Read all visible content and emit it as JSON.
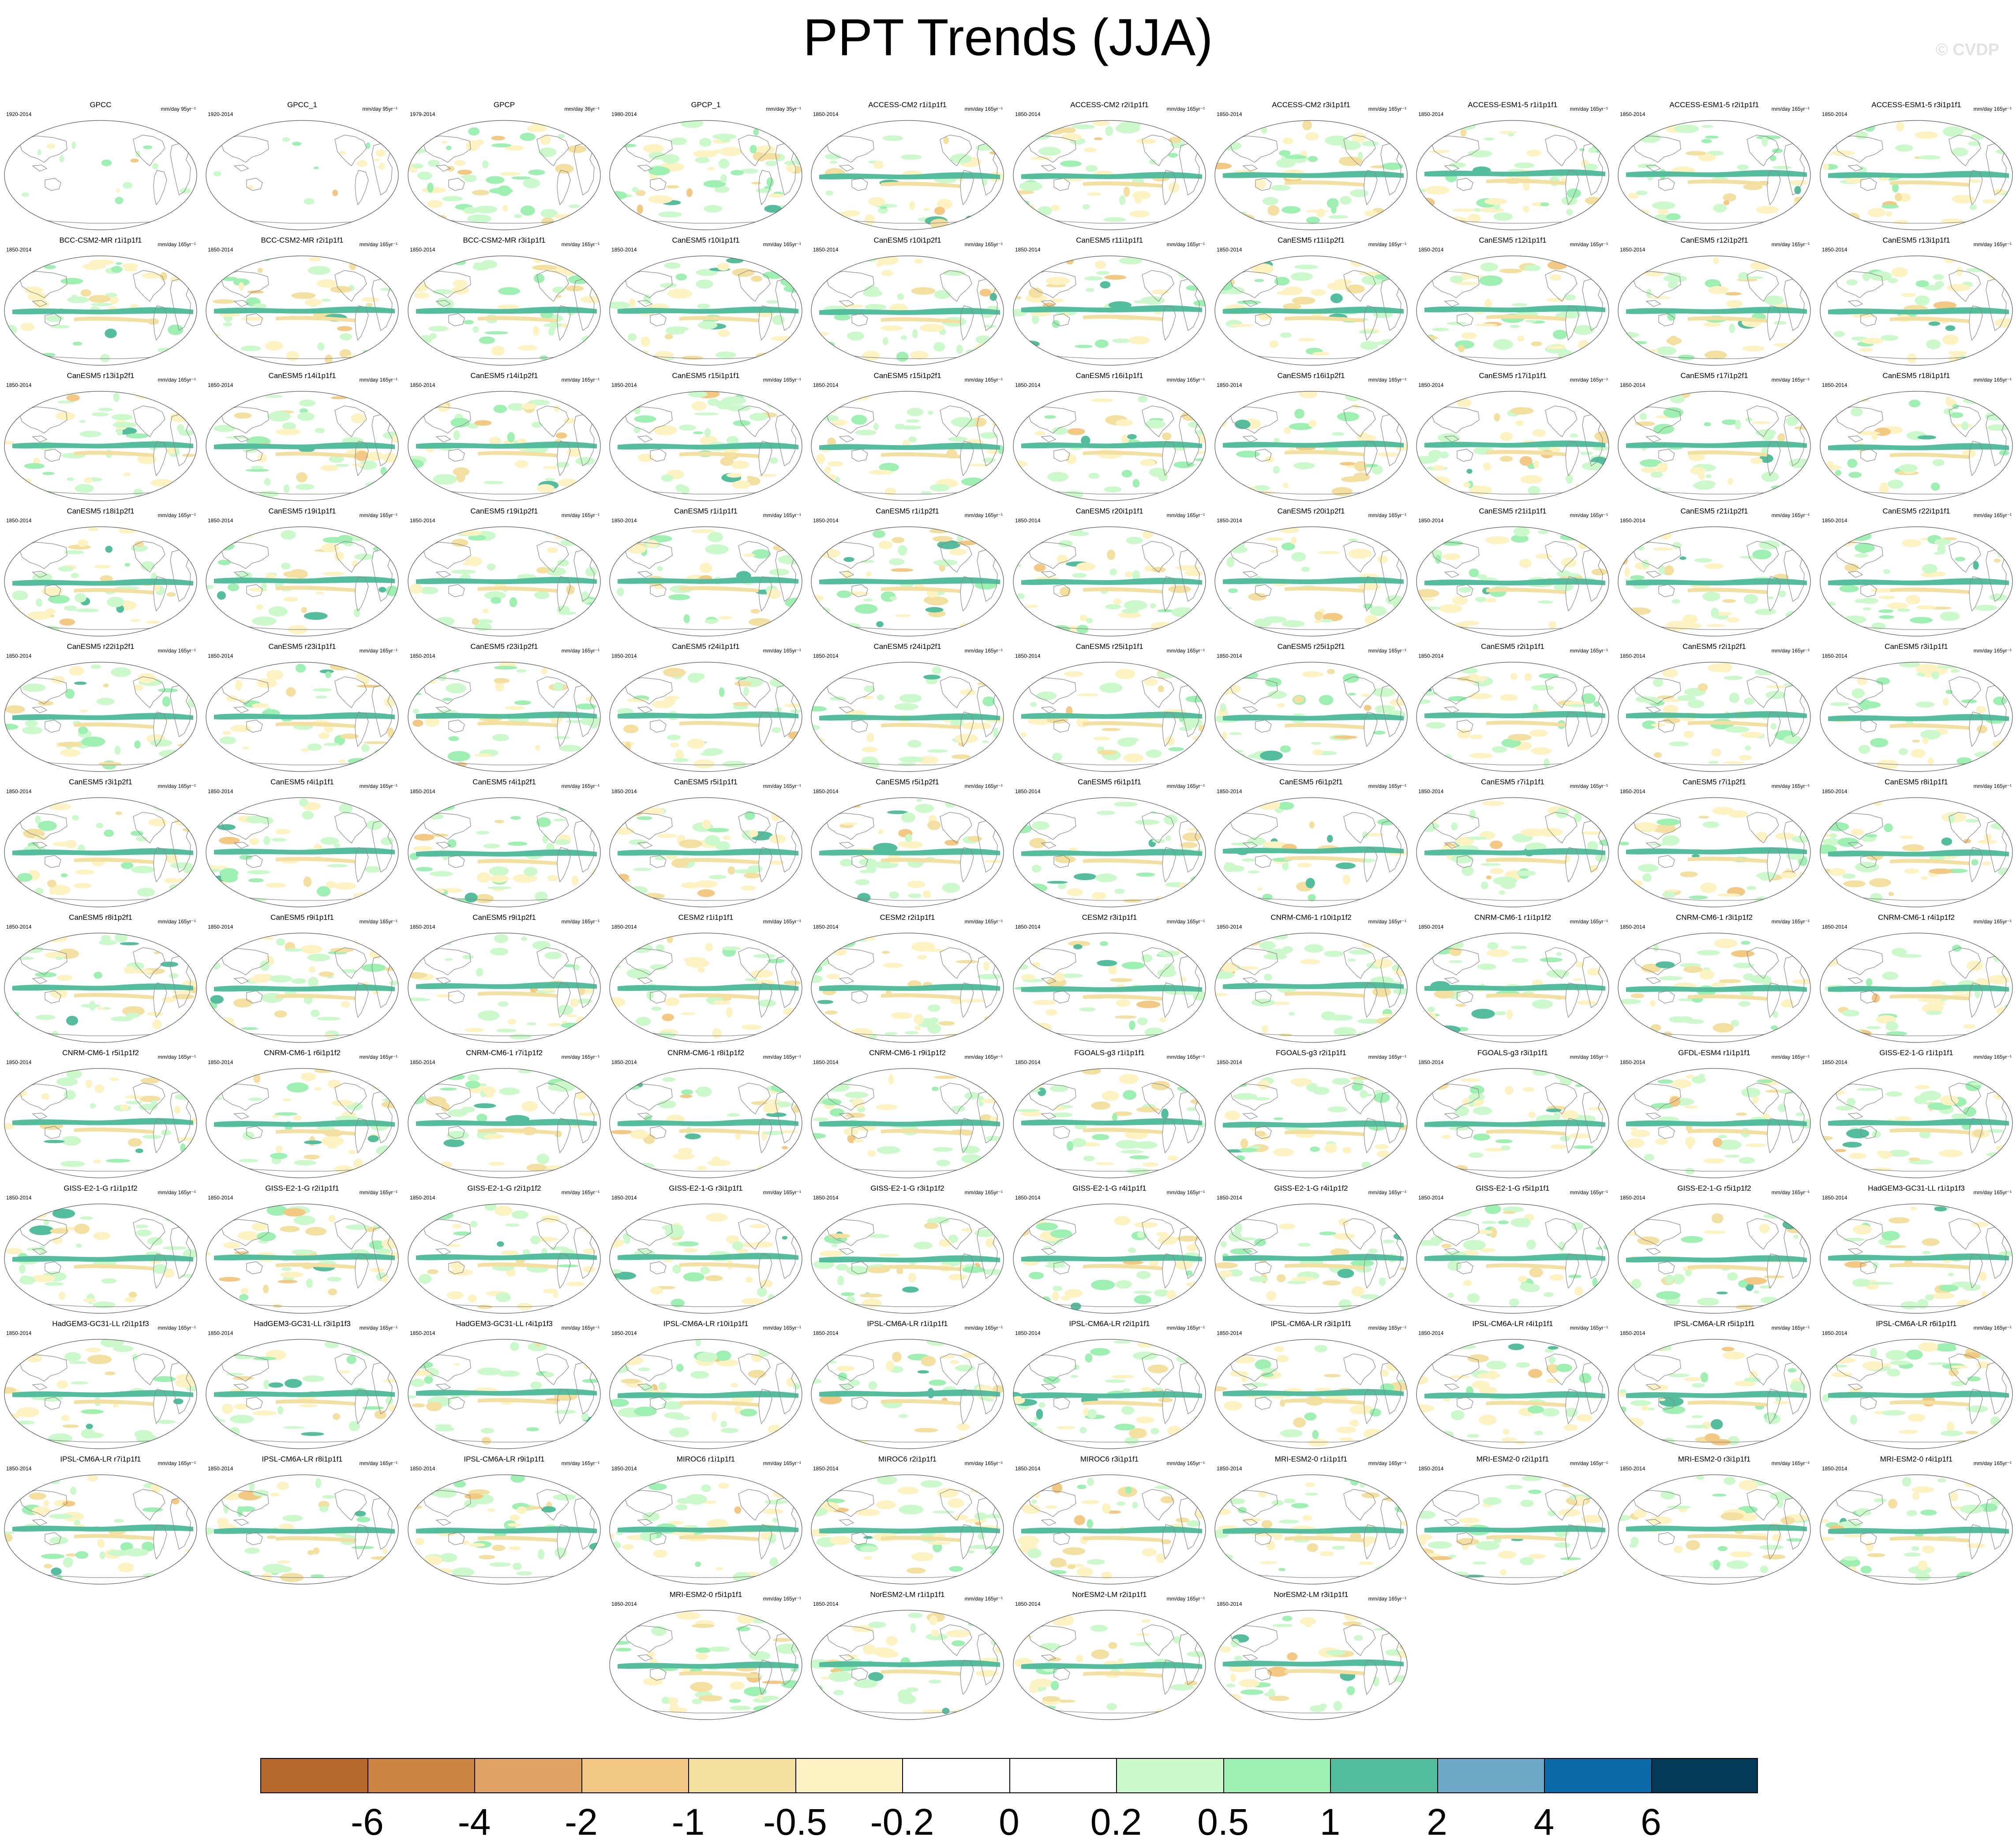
{
  "title": "PPT Trends (JJA)",
  "credit": "© CVDP",
  "colors": {
    "land_outline": "#8a8a8a",
    "map_border": "#555555",
    "palette": [
      "#b5692a",
      "#cc8442",
      "#dea262",
      "#f3c883",
      "#f5dfa2",
      "#fcf1c2",
      "#ffffff",
      "#ffffff",
      "#ccf8cc",
      "#9ded b1",
      "#57be9b",
      "#73a9c8",
      "#0a6aa8",
      "#003857"
    ]
  },
  "colorbar": {
    "colors": [
      "#b5692a",
      "#cc8442",
      "#dea262",
      "#f3c883",
      "#f3e0a0",
      "#fdf2c2",
      "#ffffff",
      "#ffffff",
      "#ccf9cc",
      "#9ef0b2",
      "#53bd9e",
      "#6fa9c8",
      "#0b6aa8",
      "#033a57"
    ],
    "labels": [
      "-6",
      "-4",
      "-2",
      "-1",
      "-0.5",
      "-0.2",
      "0",
      "0.2",
      "0.5",
      "1",
      "2",
      "4",
      "6"
    ]
  },
  "panels": [
    {
      "title": "GPCC",
      "period": "1920-2014",
      "units": "mm/day 95yr⁻¹",
      "style": "obs"
    },
    {
      "title": "GPCC_1",
      "period": "1920-2014",
      "units": "mm/day 95yr⁻¹",
      "style": "obs"
    },
    {
      "title": "GPCP",
      "period": "1979-2014",
      "units": "mm/day 36yr⁻¹",
      "style": "gpcp"
    },
    {
      "title": "GPCP_1",
      "period": "1980-2014",
      "units": "mm/day 35yr⁻¹",
      "style": "gpcp"
    },
    {
      "title": "ACCESS-CM2 r1i1p1f1",
      "period": "1850-2014",
      "units": "mm/day 165yr⁻¹",
      "style": "model"
    },
    {
      "title": "ACCESS-CM2 r2i1p1f1",
      "period": "1850-2014",
      "units": "mm/day 165yr⁻¹",
      "style": "model"
    },
    {
      "title": "ACCESS-CM2 r3i1p1f1",
      "period": "1850-2014",
      "units": "mm/day 165yr⁻¹",
      "style": "model"
    },
    {
      "title": "ACCESS-ESM1-5 r1i1p1f1",
      "period": "1850-2014",
      "units": "mm/day 165yr⁻¹",
      "style": "model"
    },
    {
      "title": "ACCESS-ESM1-5 r2i1p1f1",
      "period": "1850-2014",
      "units": "mm/day 165yr⁻¹",
      "style": "model"
    },
    {
      "title": "ACCESS-ESM1-5 r3i1p1f1",
      "period": "1850-2014",
      "units": "mm/day 165yr⁻¹",
      "style": "model"
    },
    {
      "title": "BCC-CSM2-MR r1i1p1f1",
      "period": "1850-2014",
      "units": "mm/day 165yr⁻¹",
      "style": "model"
    },
    {
      "title": "BCC-CSM2-MR r2i1p1f1",
      "period": "1850-2014",
      "units": "mm/day 165yr⁻¹",
      "style": "model"
    },
    {
      "title": "BCC-CSM2-MR r3i1p1f1",
      "period": "1850-2014",
      "units": "mm/day 165yr⁻¹",
      "style": "model"
    },
    {
      "title": "CanESM5 r10i1p1f1",
      "period": "1850-2014",
      "units": "mm/day 165yr⁻¹",
      "style": "model"
    },
    {
      "title": "CanESM5 r10i1p2f1",
      "period": "1850-2014",
      "units": "mm/day 165yr⁻¹",
      "style": "model"
    },
    {
      "title": "CanESM5 r11i1p1f1",
      "period": "1850-2014",
      "units": "mm/day 165yr⁻¹",
      "style": "model"
    },
    {
      "title": "CanESM5 r11i1p2f1",
      "period": "1850-2014",
      "units": "mm/day 165yr⁻¹",
      "style": "model"
    },
    {
      "title": "CanESM5 r12i1p1f1",
      "period": "1850-2014",
      "units": "mm/day 165yr⁻¹",
      "style": "model"
    },
    {
      "title": "CanESM5 r12i1p2f1",
      "period": "1850-2014",
      "units": "mm/day 165yr⁻¹",
      "style": "model"
    },
    {
      "title": "CanESM5 r13i1p1f1",
      "period": "1850-2014",
      "units": "mm/day 165yr⁻¹",
      "style": "model"
    },
    {
      "title": "CanESM5 r13i1p2f1",
      "period": "1850-2014",
      "units": "mm/day 165yr⁻¹",
      "style": "model"
    },
    {
      "title": "CanESM5 r14i1p1f1",
      "period": "1850-2014",
      "units": "mm/day 165yr⁻¹",
      "style": "model"
    },
    {
      "title": "CanESM5 r14i1p2f1",
      "period": "1850-2014",
      "units": "mm/day 165yr⁻¹",
      "style": "model"
    },
    {
      "title": "CanESM5 r15i1p1f1",
      "period": "1850-2014",
      "units": "mm/day 165yr⁻¹",
      "style": "model"
    },
    {
      "title": "CanESM5 r15i1p2f1",
      "period": "1850-2014",
      "units": "mm/day 165yr⁻¹",
      "style": "model"
    },
    {
      "title": "CanESM5 r16i1p1f1",
      "period": "1850-2014",
      "units": "mm/day 165yr⁻¹",
      "style": "model"
    },
    {
      "title": "CanESM5 r16i1p2f1",
      "period": "1850-2014",
      "units": "mm/day 165yr⁻¹",
      "style": "model"
    },
    {
      "title": "CanESM5 r17i1p1f1",
      "period": "1850-2014",
      "units": "mm/day 165yr⁻¹",
      "style": "model"
    },
    {
      "title": "CanESM5 r17i1p2f1",
      "period": "1850-2014",
      "units": "mm/day 165yr⁻¹",
      "style": "model"
    },
    {
      "title": "CanESM5 r18i1p1f1",
      "period": "1850-2014",
      "units": "mm/day 165yr⁻¹",
      "style": "model"
    },
    {
      "title": "CanESM5 r18i1p2f1",
      "period": "1850-2014",
      "units": "mm/day 165yr⁻¹",
      "style": "model"
    },
    {
      "title": "CanESM5 r19i1p1f1",
      "period": "1850-2014",
      "units": "mm/day 165yr⁻¹",
      "style": "model"
    },
    {
      "title": "CanESM5 r19i1p2f1",
      "period": "1850-2014",
      "units": "mm/day 165yr⁻¹",
      "style": "model"
    },
    {
      "title": "CanESM5 r1i1p1f1",
      "period": "1850-2014",
      "units": "mm/day 165yr⁻¹",
      "style": "model"
    },
    {
      "title": "CanESM5 r1i1p2f1",
      "period": "1850-2014",
      "units": "mm/day 165yr⁻¹",
      "style": "model"
    },
    {
      "title": "CanESM5 r20i1p1f1",
      "period": "1850-2014",
      "units": "mm/day 165yr⁻¹",
      "style": "model"
    },
    {
      "title": "CanESM5 r20i1p2f1",
      "period": "1850-2014",
      "units": "mm/day 165yr⁻¹",
      "style": "model"
    },
    {
      "title": "CanESM5 r21i1p1f1",
      "period": "1850-2014",
      "units": "mm/day 165yr⁻¹",
      "style": "model"
    },
    {
      "title": "CanESM5 r21i1p2f1",
      "period": "1850-2014",
      "units": "mm/day 165yr⁻¹",
      "style": "model"
    },
    {
      "title": "CanESM5 r22i1p1f1",
      "period": "1850-2014",
      "units": "mm/day 165yr⁻¹",
      "style": "model"
    },
    {
      "title": "CanESM5 r22i1p2f1",
      "period": "1850-2014",
      "units": "mm/day 165yr⁻¹",
      "style": "model"
    },
    {
      "title": "CanESM5 r23i1p1f1",
      "period": "1850-2014",
      "units": "mm/day 165yr⁻¹",
      "style": "model"
    },
    {
      "title": "CanESM5 r23i1p2f1",
      "period": "1850-2014",
      "units": "mm/day 165yr⁻¹",
      "style": "model"
    },
    {
      "title": "CanESM5 r24i1p1f1",
      "period": "1850-2014",
      "units": "mm/day 165yr⁻¹",
      "style": "model"
    },
    {
      "title": "CanESM5 r24i1p2f1",
      "period": "1850-2014",
      "units": "mm/day 165yr⁻¹",
      "style": "model"
    },
    {
      "title": "CanESM5 r25i1p1f1",
      "period": "1850-2014",
      "units": "mm/day 165yr⁻¹",
      "style": "model"
    },
    {
      "title": "CanESM5 r25i1p2f1",
      "period": "1850-2014",
      "units": "mm/day 165yr⁻¹",
      "style": "model"
    },
    {
      "title": "CanESM5 r2i1p1f1",
      "period": "1850-2014",
      "units": "mm/day 165yr⁻¹",
      "style": "model"
    },
    {
      "title": "CanESM5 r2i1p2f1",
      "period": "1850-2014",
      "units": "mm/day 165yr⁻¹",
      "style": "model"
    },
    {
      "title": "CanESM5 r3i1p1f1",
      "period": "1850-2014",
      "units": "mm/day 165yr⁻¹",
      "style": "model"
    },
    {
      "title": "CanESM5 r3i1p2f1",
      "period": "1850-2014",
      "units": "mm/day 165yr⁻¹",
      "style": "model"
    },
    {
      "title": "CanESM5 r4i1p1f1",
      "period": "1850-2014",
      "units": "mm/day 165yr⁻¹",
      "style": "model"
    },
    {
      "title": "CanESM5 r4i1p2f1",
      "period": "1850-2014",
      "units": "mm/day 165yr⁻¹",
      "style": "model"
    },
    {
      "title": "CanESM5 r5i1p1f1",
      "period": "1850-2014",
      "units": "mm/day 165yr⁻¹",
      "style": "model"
    },
    {
      "title": "CanESM5 r5i1p2f1",
      "period": "1850-2014",
      "units": "mm/day 165yr⁻¹",
      "style": "model"
    },
    {
      "title": "CanESM5 r6i1p1f1",
      "period": "1850-2014",
      "units": "mm/day 165yr⁻¹",
      "style": "model"
    },
    {
      "title": "CanESM5 r6i1p2f1",
      "period": "1850-2014",
      "units": "mm/day 165yr⁻¹",
      "style": "model"
    },
    {
      "title": "CanESM5 r7i1p1f1",
      "period": "1850-2014",
      "units": "mm/day 165yr⁻¹",
      "style": "model"
    },
    {
      "title": "CanESM5 r7i1p2f1",
      "period": "1850-2014",
      "units": "mm/day 165yr⁻¹",
      "style": "model"
    },
    {
      "title": "CanESM5 r8i1p1f1",
      "period": "1850-2014",
      "units": "mm/day 165yr⁻¹",
      "style": "model"
    },
    {
      "title": "CanESM5 r8i1p2f1",
      "period": "1850-2014",
      "units": "mm/day 165yr⁻¹",
      "style": "model"
    },
    {
      "title": "CanESM5 r9i1p1f1",
      "period": "1850-2014",
      "units": "mm/day 165yr⁻¹",
      "style": "model"
    },
    {
      "title": "CanESM5 r9i1p2f1",
      "period": "1850-2014",
      "units": "mm/day 165yr⁻¹",
      "style": "model"
    },
    {
      "title": "CESM2 r1i1p1f1",
      "period": "1850-2014",
      "units": "mm/day 165yr⁻¹",
      "style": "model"
    },
    {
      "title": "CESM2 r2i1p1f1",
      "period": "1850-2014",
      "units": "mm/day 165yr⁻¹",
      "style": "model"
    },
    {
      "title": "CESM2 r3i1p1f1",
      "period": "1850-2014",
      "units": "mm/day 165yr⁻¹",
      "style": "model"
    },
    {
      "title": "CNRM-CM6-1 r10i1p1f2",
      "period": "1850-2014",
      "units": "mm/day 165yr⁻¹",
      "style": "model"
    },
    {
      "title": "CNRM-CM6-1 r1i1p1f2",
      "period": "1850-2014",
      "units": "mm/day 165yr⁻¹",
      "style": "model"
    },
    {
      "title": "CNRM-CM6-1 r3i1p1f2",
      "period": "1850-2014",
      "units": "mm/day 165yr⁻¹",
      "style": "model"
    },
    {
      "title": "CNRM-CM6-1 r4i1p1f2",
      "period": "1850-2014",
      "units": "mm/day 165yr⁻¹",
      "style": "model"
    },
    {
      "title": "CNRM-CM6-1 r5i1p1f2",
      "period": "1850-2014",
      "units": "mm/day 165yr⁻¹",
      "style": "model"
    },
    {
      "title": "CNRM-CM6-1 r6i1p1f2",
      "period": "1850-2014",
      "units": "mm/day 165yr⁻¹",
      "style": "model"
    },
    {
      "title": "CNRM-CM6-1 r7i1p1f2",
      "period": "1850-2014",
      "units": "mm/day 165yr⁻¹",
      "style": "model"
    },
    {
      "title": "CNRM-CM6-1 r8i1p1f2",
      "period": "1850-2014",
      "units": "mm/day 165yr⁻¹",
      "style": "model"
    },
    {
      "title": "CNRM-CM6-1 r9i1p1f2",
      "period": "1850-2014",
      "units": "mm/day 165yr⁻¹",
      "style": "model"
    },
    {
      "title": "FGOALS-g3 r1i1p1f1",
      "period": "1850-2014",
      "units": "mm/day 165yr⁻¹",
      "style": "model"
    },
    {
      "title": "FGOALS-g3 r2i1p1f1",
      "period": "1850-2014",
      "units": "mm/day 165yr⁻¹",
      "style": "model"
    },
    {
      "title": "FGOALS-g3 r3i1p1f1",
      "period": "1850-2014",
      "units": "mm/day 165yr⁻¹",
      "style": "model"
    },
    {
      "title": "GFDL-ESM4 r1i1p1f1",
      "period": "1850-2014",
      "units": "mm/day 165yr⁻¹",
      "style": "model"
    },
    {
      "title": "GISS-E2-1-G r1i1p1f1",
      "period": "1850-2014",
      "units": "mm/day 165yr⁻¹",
      "style": "model"
    },
    {
      "title": "GISS-E2-1-G r1i1p1f2",
      "period": "1850-2014",
      "units": "mm/day 165yr⁻¹",
      "style": "model"
    },
    {
      "title": "GISS-E2-1-G r2i1p1f1",
      "period": "1850-2014",
      "units": "mm/day 165yr⁻¹",
      "style": "model"
    },
    {
      "title": "GISS-E2-1-G r2i1p1f2",
      "period": "1850-2014",
      "units": "mm/day 165yr⁻¹",
      "style": "model"
    },
    {
      "title": "GISS-E2-1-G r3i1p1f1",
      "period": "1850-2014",
      "units": "mm/day 165yr⁻¹",
      "style": "model"
    },
    {
      "title": "GISS-E2-1-G r3i1p1f2",
      "period": "1850-2014",
      "units": "mm/day 165yr⁻¹",
      "style": "model"
    },
    {
      "title": "GISS-E2-1-G r4i1p1f1",
      "period": "1850-2014",
      "units": "mm/day 165yr⁻¹",
      "style": "model"
    },
    {
      "title": "GISS-E2-1-G r4i1p1f2",
      "period": "1850-2014",
      "units": "mm/day 165yr⁻¹",
      "style": "model"
    },
    {
      "title": "GISS-E2-1-G r5i1p1f1",
      "period": "1850-2014",
      "units": "mm/day 165yr⁻¹",
      "style": "model"
    },
    {
      "title": "GISS-E2-1-G r5i1p1f2",
      "period": "1850-2014",
      "units": "mm/day 165yr⁻¹",
      "style": "model"
    },
    {
      "title": "HadGEM3-GC31-LL r1i1p1f3",
      "period": "1850-2014",
      "units": "mm/day 165yr⁻¹",
      "style": "model"
    },
    {
      "title": "HadGEM3-GC31-LL r2i1p1f3",
      "period": "1850-2014",
      "units": "mm/day 165yr⁻¹",
      "style": "model"
    },
    {
      "title": "HadGEM3-GC31-LL r3i1p1f3",
      "period": "1850-2014",
      "units": "mm/day 165yr⁻¹",
      "style": "model"
    },
    {
      "title": "HadGEM3-GC31-LL r4i1p1f3",
      "period": "1850-2014",
      "units": "mm/day 165yr⁻¹",
      "style": "model"
    },
    {
      "title": "IPSL-CM6A-LR r10i1p1f1",
      "period": "1850-2014",
      "units": "mm/day 165yr⁻¹",
      "style": "model"
    },
    {
      "title": "IPSL-CM6A-LR r1i1p1f1",
      "period": "1850-2014",
      "units": "mm/day 165yr⁻¹",
      "style": "model"
    },
    {
      "title": "IPSL-CM6A-LR r2i1p1f1",
      "period": "1850-2014",
      "units": "mm/day 165yr⁻¹",
      "style": "model"
    },
    {
      "title": "IPSL-CM6A-LR r3i1p1f1",
      "period": "1850-2014",
      "units": "mm/day 165yr⁻¹",
      "style": "model"
    },
    {
      "title": "IPSL-CM6A-LR r4i1p1f1",
      "period": "1850-2014",
      "units": "mm/day 165yr⁻¹",
      "style": "model"
    },
    {
      "title": "IPSL-CM6A-LR r5i1p1f1",
      "period": "1850-2014",
      "units": "mm/day 165yr⁻¹",
      "style": "model"
    },
    {
      "title": "IPSL-CM6A-LR r6i1p1f1",
      "period": "1850-2014",
      "units": "mm/day 165yr⁻¹",
      "style": "model"
    },
    {
      "title": "IPSL-CM6A-LR r7i1p1f1",
      "period": "1850-2014",
      "units": "mm/day 165yr⁻¹",
      "style": "model"
    },
    {
      "title": "IPSL-CM6A-LR r8i1p1f1",
      "period": "1850-2014",
      "units": "mm/day 165yr⁻¹",
      "style": "model"
    },
    {
      "title": "IPSL-CM6A-LR r9i1p1f1",
      "period": "1850-2014",
      "units": "mm/day 165yr⁻¹",
      "style": "model"
    },
    {
      "title": "MIROC6 r1i1p1f1",
      "period": "1850-2014",
      "units": "mm/day 165yr⁻¹",
      "style": "model"
    },
    {
      "title": "MIROC6 r2i1p1f1",
      "period": "1850-2014",
      "units": "mm/day 165yr⁻¹",
      "style": "model"
    },
    {
      "title": "MIROC6 r3i1p1f1",
      "period": "1850-2014",
      "units": "mm/day 165yr⁻¹",
      "style": "model"
    },
    {
      "title": "MRI-ESM2-0 r1i1p1f1",
      "period": "1850-2014",
      "units": "mm/day 165yr⁻¹",
      "style": "model"
    },
    {
      "title": "MRI-ESM2-0 r2i1p1f1",
      "period": "1850-2014",
      "units": "mm/day 165yr⁻¹",
      "style": "model"
    },
    {
      "title": "MRI-ESM2-0 r3i1p1f1",
      "period": "1850-2014",
      "units": "mm/day 165yr⁻¹",
      "style": "model"
    },
    {
      "title": "MRI-ESM2-0 r4i1p1f1",
      "period": "1850-2014",
      "units": "mm/day 165yr⁻¹",
      "style": "model"
    },
    {
      "title": "MRI-ESM2-0 r5i1p1f1",
      "period": "1850-2014",
      "units": "mm/day 165yr⁻¹",
      "style": "model"
    },
    {
      "title": "NorESM2-LM r1i1p1f1",
      "period": "1850-2014",
      "units": "mm/day 165yr⁻¹",
      "style": "model"
    },
    {
      "title": "NorESM2-LM r2i1p1f1",
      "period": "1850-2014",
      "units": "mm/day 165yr⁻¹",
      "style": "model"
    },
    {
      "title": "NorESM2-LM r3i1p1f1",
      "period": "1850-2014",
      "units": "mm/day 165yr⁻¹",
      "style": "model"
    }
  ]
}
